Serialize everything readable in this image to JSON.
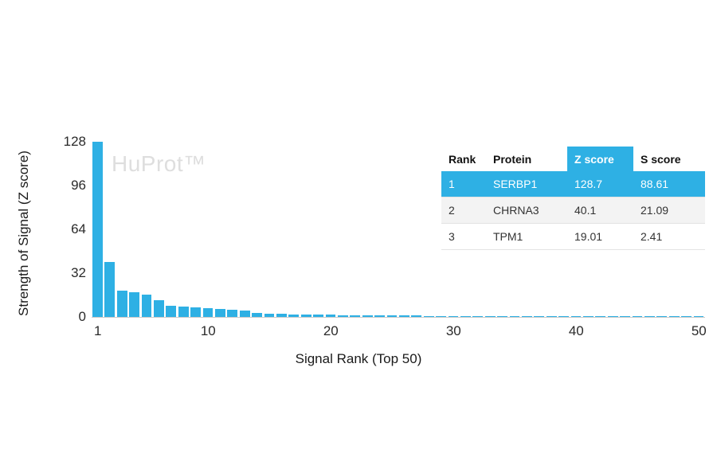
{
  "watermark": "HuProt™",
  "colors": {
    "accent": "#2eb0e4",
    "axis_line": "#c9c9c9",
    "watermark_gray": "#dedede",
    "row_alt_gray": "#f3f3f3"
  },
  "chart_data": {
    "type": "bar",
    "title": "",
    "xlabel": "Signal Rank (Top 50)",
    "ylabel": "Strength of Signal (Z score)",
    "ylim": [
      0,
      128
    ],
    "yticks": [
      0,
      32,
      64,
      96,
      128
    ],
    "xticks": [
      1,
      10,
      20,
      30,
      40,
      50
    ],
    "x_range": [
      1,
      50
    ],
    "grid": false,
    "legend": "none",
    "values": [
      128.7,
      40.1,
      19.01,
      17.8,
      16.2,
      12.4,
      8.3,
      7.6,
      7.0,
      6.4,
      5.8,
      5.2,
      4.6,
      2.8,
      2.4,
      2.1,
      1.9,
      1.7,
      1.6,
      1.5,
      1.4,
      1.3,
      1.2,
      1.1,
      1.0,
      0.95,
      0.9,
      0.85,
      0.8,
      0.75,
      0.7,
      0.68,
      0.65,
      0.62,
      0.6,
      0.58,
      0.55,
      0.52,
      0.5,
      0.48,
      0.46,
      0.44,
      0.42,
      0.4,
      0.38,
      0.36,
      0.34,
      0.32,
      0.3,
      0.28
    ]
  },
  "table": {
    "headers": [
      "Rank",
      "Protein",
      "Z score",
      "S score"
    ],
    "rows": [
      [
        "1",
        "SERBP1",
        "128.7",
        "88.61"
      ],
      [
        "2",
        "CHRNA3",
        "40.1",
        "21.09"
      ],
      [
        "3",
        "TPM1",
        "19.01",
        "2.41"
      ]
    ]
  }
}
